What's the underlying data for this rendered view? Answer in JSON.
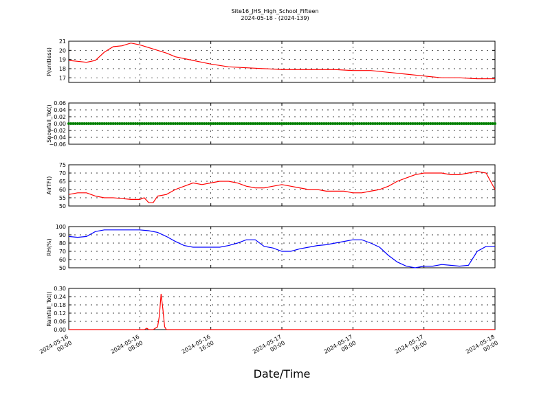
{
  "title_line1": "Site16_JHS_High_School_Fifteen",
  "title_line2": "2024-05-18 - (2024-139)",
  "xlabel": "Date/Time",
  "chart_data": [
    {
      "type": "line",
      "ylabel": "P(unitless)",
      "ylim": [
        16.5,
        21
      ],
      "yticks": [
        "17",
        "18",
        "19",
        "20",
        "21"
      ],
      "series": [
        {
          "color": "#ff0000",
          "x": [
            0,
            1,
            2,
            3,
            4,
            5,
            6,
            7,
            8,
            9,
            10,
            11,
            12,
            13,
            14,
            15,
            16,
            18,
            20,
            22,
            24,
            26,
            28,
            30,
            32,
            34,
            36,
            38,
            40,
            42,
            44,
            46,
            48
          ],
          "y": [
            18.9,
            18.8,
            18.7,
            18.9,
            19.8,
            20.4,
            20.5,
            20.8,
            20.6,
            20.3,
            20.0,
            19.7,
            19.3,
            19.1,
            18.9,
            18.7,
            18.5,
            18.2,
            18.1,
            18.0,
            17.9,
            17.9,
            17.9,
            17.9,
            17.8,
            17.8,
            17.6,
            17.4,
            17.2,
            17.0,
            17.0,
            16.9,
            16.9
          ]
        }
      ],
      "grid": true
    },
    {
      "type": "line",
      "ylabel": "Snowfall_Tot()",
      "ylim": [
        -0.06,
        0.06
      ],
      "yticks": [
        "−0.06",
        "−0.04",
        "−0.02",
        "0.00",
        "0.02",
        "0.04",
        "0.06"
      ],
      "series": [
        {
          "color": "#008000",
          "x": [
            0,
            48
          ],
          "y": [
            0.0,
            0.0
          ],
          "markers": true
        }
      ],
      "grid": true
    },
    {
      "type": "line",
      "ylabel": "AirTF()",
      "ylim": [
        50,
        75
      ],
      "yticks": [
        "50",
        "55",
        "60",
        "65",
        "70",
        "75"
      ],
      "series": [
        {
          "color": "#ff0000",
          "x": [
            0,
            1,
            2,
            3,
            4,
            5,
            6,
            7,
            8,
            8.5,
            9,
            9.5,
            10,
            11,
            12,
            13,
            14,
            15,
            16,
            17,
            18,
            19,
            20,
            21,
            22,
            23,
            24,
            25,
            26,
            27,
            28,
            29,
            30,
            31,
            32,
            33,
            34,
            35,
            36,
            37,
            38,
            39,
            40,
            41,
            42,
            43,
            44,
            45,
            46,
            47,
            48
          ],
          "y": [
            57,
            58,
            58,
            56,
            55,
            55,
            54.5,
            54,
            54,
            55,
            52,
            52,
            56,
            57,
            60,
            62,
            64,
            63,
            64,
            65,
            65,
            64,
            62,
            61,
            61,
            62,
            63,
            62,
            61,
            60,
            60,
            59,
            59,
            59,
            58,
            58,
            59,
            60,
            62,
            65,
            67,
            69,
            70,
            70,
            70,
            69,
            69,
            70,
            71,
            70,
            60
          ]
        }
      ],
      "grid": true
    },
    {
      "type": "line",
      "ylabel": "RH(%)",
      "ylim": [
        50,
        100
      ],
      "yticks": [
        "50",
        "60",
        "70",
        "80",
        "90",
        "100"
      ],
      "series": [
        {
          "color": "#0000ff",
          "x": [
            0,
            1,
            2,
            3,
            4,
            5,
            6,
            7,
            8,
            9,
            10,
            11,
            12,
            13,
            14,
            15,
            16,
            17,
            18,
            19,
            20,
            21,
            22,
            23,
            24,
            25,
            26,
            27,
            28,
            29,
            30,
            31,
            32,
            33,
            34,
            35,
            36,
            37,
            38,
            39,
            40,
            41,
            42,
            43,
            44,
            45,
            46,
            47,
            48
          ],
          "y": [
            88,
            87,
            88,
            94,
            96,
            96,
            96,
            96,
            96,
            95,
            93,
            88,
            82,
            77,
            75,
            75,
            75,
            75,
            77,
            80,
            84,
            84,
            76,
            74,
            70,
            70,
            73,
            75,
            77,
            78,
            80,
            82,
            84,
            84,
            80,
            75,
            65,
            57,
            52,
            50,
            52,
            52,
            54,
            53,
            52,
            53,
            70,
            76,
            76
          ]
        }
      ],
      "grid": true
    },
    {
      "type": "line",
      "ylabel": "Rainfall_Tot()",
      "ylim": [
        0,
        0.3
      ],
      "yticks": [
        "0.00",
        "0.06",
        "0.12",
        "0.18",
        "0.24",
        "0.30"
      ],
      "series": [
        {
          "color": "#ff0000",
          "x": [
            0,
            8,
            8.5,
            8.8,
            9,
            9.5,
            10,
            10.2,
            10.4,
            10.6,
            10.8,
            11,
            48
          ],
          "y": [
            0,
            0,
            0,
            0.01,
            0,
            0,
            0.02,
            0.1,
            0.26,
            0.15,
            0.02,
            0,
            0
          ]
        }
      ],
      "grid": true,
      "xticks": [
        {
          "x": 0,
          "line1": "2024-05-16",
          "line2": "00:00"
        },
        {
          "x": 8,
          "line1": "2024-05-16",
          "line2": "08:00"
        },
        {
          "x": 16,
          "line1": "2024-05-16",
          "line2": "16:00"
        },
        {
          "x": 24,
          "line1": "2024-05-17",
          "line2": "00:00"
        },
        {
          "x": 32,
          "line1": "2024-05-17",
          "line2": "08:00"
        },
        {
          "x": 40,
          "line1": "2024-05-17",
          "line2": "16:00"
        },
        {
          "x": 48,
          "line1": "2024-05-18",
          "line2": "00:00"
        }
      ]
    }
  ]
}
